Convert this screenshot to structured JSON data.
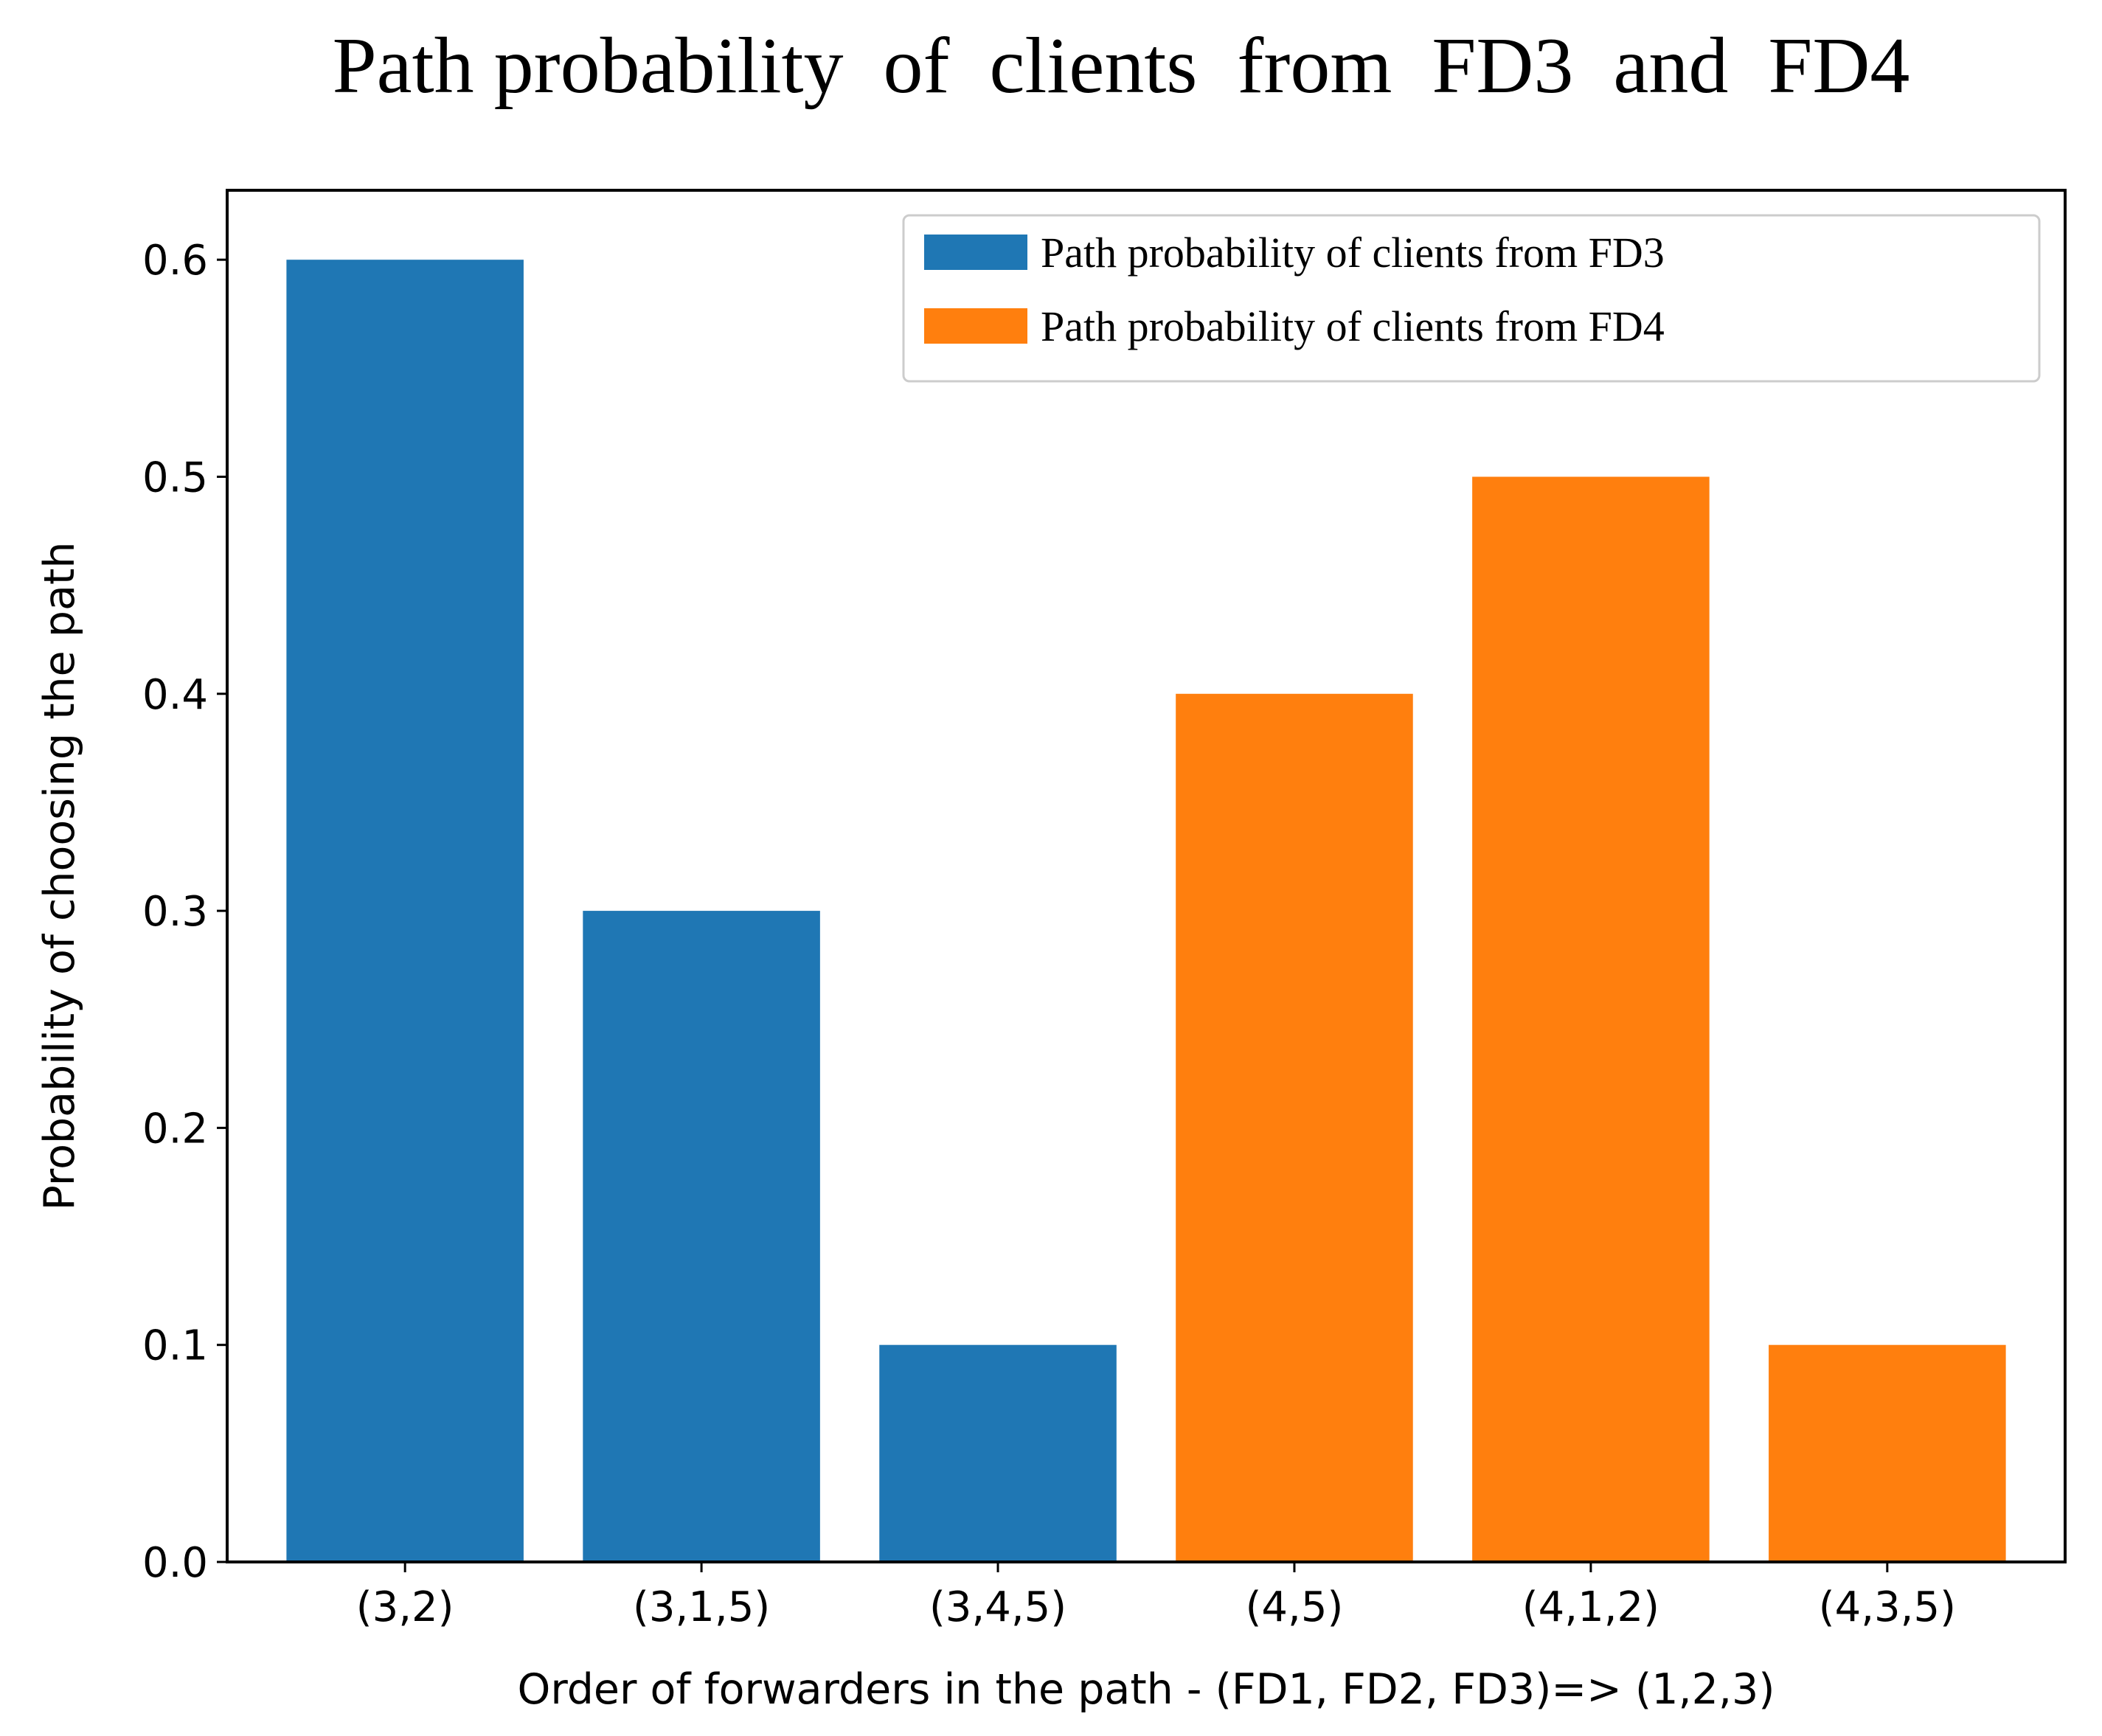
{
  "chart_data": {
    "type": "bar",
    "title": "Path probability  of  clients  from  FD3  and  FD4",
    "xlabel": "Order of forwarders in the path - (FD1, FD2, FD3)=> (1,2,3)",
    "ylabel": "Probability of choosing the path",
    "ylim": [
      0,
      0.632
    ],
    "yticks": [
      0.0,
      0.1,
      0.2,
      0.3,
      0.4,
      0.5,
      0.6
    ],
    "ytick_labels": [
      "0.0",
      "0.1",
      "0.2",
      "0.3",
      "0.4",
      "0.5",
      "0.6"
    ],
    "categories": [
      "(3,2)",
      "(3,1,5)",
      "(3,4,5)",
      "(4,5)",
      "(4,1,2)",
      "(4,3,5)"
    ],
    "grid": false,
    "legend_position": "top-right",
    "series": [
      {
        "name": "Path  probability  of  clients  from  FD3",
        "color": "#1f77b4",
        "values": [
          0.6,
          0.3,
          0.1,
          null,
          null,
          null
        ]
      },
      {
        "name": "Path  probability  of  clients  from  FD4",
        "color": "#ff7f0e",
        "values": [
          null,
          null,
          null,
          0.4,
          0.5,
          0.1
        ]
      }
    ]
  }
}
